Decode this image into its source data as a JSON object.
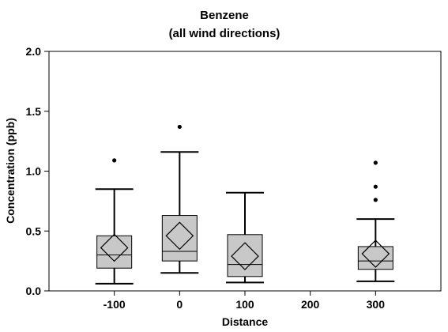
{
  "chart_data": {
    "type": "boxplot",
    "title": "Benzene",
    "subtitle": "(all wind directions)",
    "xlabel": "Distance",
    "ylabel": "Concentration (ppb)",
    "xlim": [
      -200,
      400
    ],
    "ylim": [
      0,
      2.0
    ],
    "x_ticks": [
      -100,
      0,
      100,
      200,
      300
    ],
    "y_ticks": [
      0.0,
      0.5,
      1.0,
      1.5,
      2.0
    ],
    "x_tick_labels": [
      "-100",
      "0",
      "100",
      "200",
      "300"
    ],
    "y_tick_labels": [
      "0.0",
      "0.5",
      "1.0",
      "1.5",
      "2.0"
    ],
    "grid": false,
    "box_color": "#c8c8c8",
    "line_color": "#000000",
    "groups": [
      {
        "x": -100,
        "whisker_low": 0.06,
        "q1": 0.19,
        "median": 0.3,
        "q3": 0.46,
        "whisker_high": 0.85,
        "mean": 0.36,
        "outliers": [
          1.09
        ]
      },
      {
        "x": 0,
        "whisker_low": 0.15,
        "q1": 0.25,
        "median": 0.33,
        "q3": 0.63,
        "whisker_high": 1.16,
        "mean": 0.46,
        "outliers": [
          1.37
        ]
      },
      {
        "x": 100,
        "whisker_low": 0.07,
        "q1": 0.12,
        "median": 0.22,
        "q3": 0.47,
        "whisker_high": 0.82,
        "mean": 0.29,
        "outliers": []
      },
      {
        "x": 300,
        "whisker_low": 0.08,
        "q1": 0.18,
        "median": 0.25,
        "q3": 0.37,
        "whisker_high": 0.6,
        "mean": 0.31,
        "outliers": [
          0.76,
          0.87,
          1.07
        ]
      }
    ]
  }
}
